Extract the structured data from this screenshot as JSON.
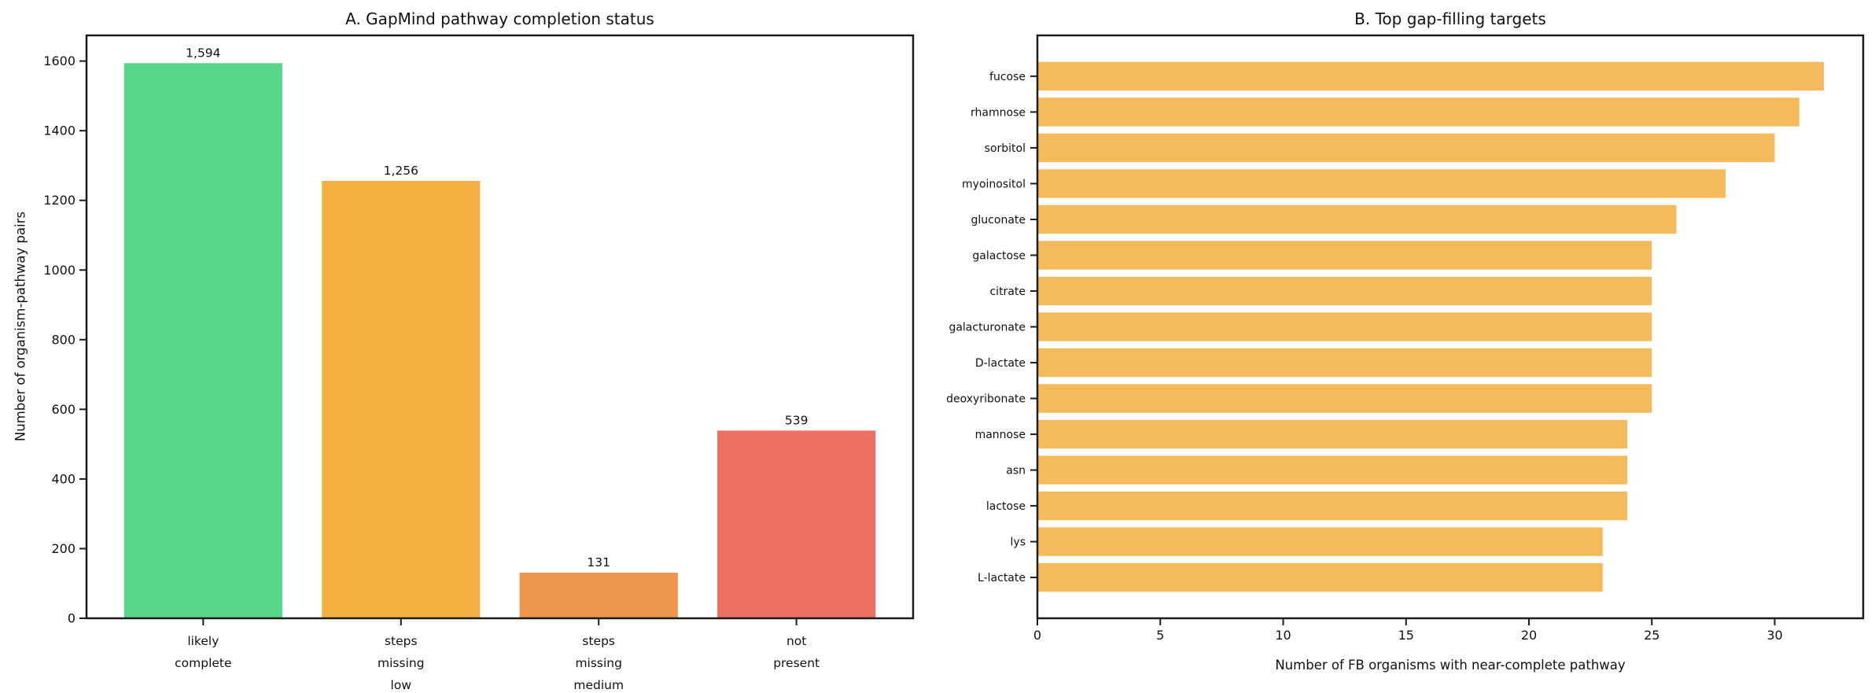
{
  "figure": {
    "background": "#ffffff",
    "text_color": "#111111",
    "spine_color": "#1c1c1c"
  },
  "chart_data": [
    {
      "id": "pathway-completion-status",
      "type": "bar",
      "title": "A. GapMind pathway completion status",
      "ylabel": "Number of organism-pathway pairs",
      "xlabel": "",
      "categories": [
        "likely\ncomplete",
        "steps\nmissing\nlow",
        "steps\nmissing\nmedium",
        "not\npresent"
      ],
      "values": [
        1594,
        1256,
        131,
        539
      ],
      "value_labels": [
        "1,594",
        "1,256",
        "131",
        "539"
      ],
      "bar_colors": [
        "#56d68a",
        "#f5b042",
        "#ec964e",
        "#eb6f63"
      ],
      "yticks": [
        0,
        200,
        400,
        600,
        800,
        1000,
        1200,
        1400,
        1600
      ],
      "ylim": [
        0,
        1673.7
      ],
      "xlim": [
        -0.59,
        3.59
      ],
      "bar_width": 0.8,
      "grid": false,
      "legend": null
    },
    {
      "id": "top-gap-filling-targets",
      "type": "barh",
      "title": "B. Top gap-filling targets",
      "xlabel": "Number of FB organisms with near-complete pathway",
      "ylabel": "",
      "categories": [
        "fucose",
        "rhamnose",
        "sorbitol",
        "myoinositol",
        "gluconate",
        "galactose",
        "citrate",
        "galacturonate",
        "D-lactate",
        "deoxyribonate",
        "mannose",
        "asn",
        "lactose",
        "lys",
        "L-lactate"
      ],
      "values": [
        32,
        31,
        30,
        28,
        26,
        25,
        25,
        25,
        25,
        25,
        24,
        24,
        24,
        23,
        23
      ],
      "bar_color": "#f4ba5b",
      "xticks": [
        0,
        5,
        10,
        15,
        20,
        25,
        30
      ],
      "xlim": [
        0,
        33.6
      ],
      "ylim": [
        -1.14,
        15.14
      ],
      "bar_height": 0.8,
      "grid": false,
      "legend": null
    }
  ]
}
